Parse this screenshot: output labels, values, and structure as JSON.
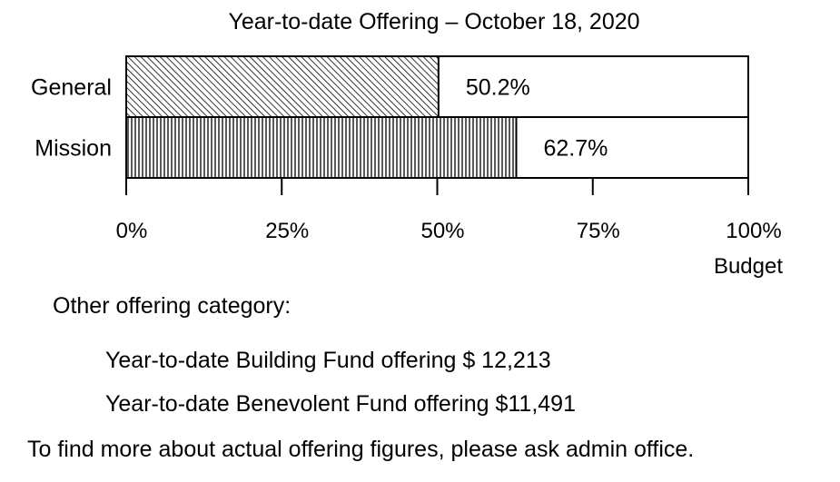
{
  "chart_data": {
    "type": "bar",
    "orientation": "horizontal",
    "stacked_to_budget": true,
    "title": "Year-to-date Offering – October 18, 2020",
    "categories": [
      "General",
      "Mission"
    ],
    "values": [
      50.2,
      62.7
    ],
    "value_labels": [
      "50.2%",
      "62.7%"
    ],
    "xlim": [
      0,
      100
    ],
    "x_ticks": [
      0,
      25,
      50,
      75,
      100
    ],
    "x_tick_labels": [
      "0%",
      "25%",
      "50%",
      "75%",
      "100%"
    ],
    "xlabel": "Budget",
    "grid": false,
    "legend": "none",
    "fill_patterns": [
      "diagonal-hatch",
      "vertical-lines"
    ]
  },
  "notes": {
    "heading": "Other offering category:",
    "building_fund": "Year-to-date Building Fund offering $ 12,213",
    "benevolent_fund": "Year-to-date Benevolent Fund offering $11,491",
    "footer": "To find more about actual offering figures, please ask admin office."
  }
}
